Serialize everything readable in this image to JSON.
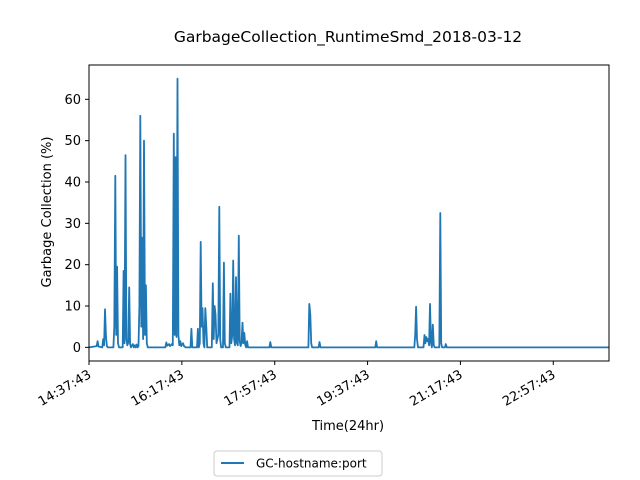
{
  "chart_data": {
    "type": "line",
    "title": "GarbageCollection_RuntimeSmd_2018-03-12",
    "xlabel": "Time(24hr)",
    "ylabel": "Garbage Collection (%)",
    "xlim": [
      "14:37:43",
      "23:57:43"
    ],
    "ylim": [
      -3.3,
      68.3
    ],
    "x_ticks": [
      "14:37:43",
      "16:17:43",
      "17:57:43",
      "19:37:43",
      "21:17:43",
      "22:57:43"
    ],
    "y_ticks": [
      0,
      10,
      20,
      30,
      40,
      50,
      60
    ],
    "grid": false,
    "legend_position": "bottom-center",
    "series": [
      {
        "name": "GC-hostname:port",
        "color": "#1f77b4",
        "points": [
          [
            "14:37:43",
            0
          ],
          [
            "14:46:00",
            0.3
          ],
          [
            "14:47:00",
            1.5
          ],
          [
            "14:48:00",
            0.2
          ],
          [
            "14:52:00",
            0
          ],
          [
            "14:53:00",
            2.0
          ],
          [
            "14:54:00",
            0.5
          ],
          [
            "14:55:00",
            9.2
          ],
          [
            "14:56:00",
            2.5
          ],
          [
            "14:57:00",
            0.3
          ],
          [
            "14:58:00",
            0
          ],
          [
            "15:04:00",
            0
          ],
          [
            "15:05:00",
            5.0
          ],
          [
            "15:06:00",
            41.5
          ],
          [
            "15:07:00",
            3.0
          ],
          [
            "15:08:00",
            19.5
          ],
          [
            "15:09:00",
            1.0
          ],
          [
            "15:10:00",
            0
          ],
          [
            "15:14:00",
            0
          ],
          [
            "15:15:00",
            18.5
          ],
          [
            "15:16:00",
            1.0
          ],
          [
            "15:17:00",
            46.5
          ],
          [
            "15:18:00",
            2.0
          ],
          [
            "15:19:00",
            0.5
          ],
          [
            "15:20:00",
            1.2
          ],
          [
            "15:21:00",
            14.5
          ],
          [
            "15:22:00",
            0.8
          ],
          [
            "15:23:00",
            0
          ],
          [
            "15:24:00",
            0.5
          ],
          [
            "15:25:00",
            0.8
          ],
          [
            "15:26:00",
            0
          ],
          [
            "15:27:00",
            0.5
          ],
          [
            "15:28:00",
            0
          ],
          [
            "15:29:00",
            0.7
          ],
          [
            "15:30:00",
            0
          ],
          [
            "15:31:00",
            0.3
          ],
          [
            "15:32:00",
            10.0
          ],
          [
            "15:33:00",
            56.0
          ],
          [
            "15:34:00",
            5.0
          ],
          [
            "15:35:00",
            26.5
          ],
          [
            "15:36:00",
            2.0
          ],
          [
            "15:37:00",
            50.0
          ],
          [
            "15:38:00",
            3.0
          ],
          [
            "15:39:00",
            15.0
          ],
          [
            "15:40:00",
            1.0
          ],
          [
            "15:41:00",
            0
          ],
          [
            "16:00:00",
            0
          ],
          [
            "16:01:00",
            1.2
          ],
          [
            "16:02:00",
            0.4
          ],
          [
            "16:04:00",
            0.8
          ],
          [
            "16:05:00",
            0.3
          ],
          [
            "16:07:00",
            0.8
          ],
          [
            "16:08:00",
            0.5
          ],
          [
            "16:09:00",
            51.7
          ],
          [
            "16:10:00",
            3.0
          ],
          [
            "16:11:00",
            46.0
          ],
          [
            "16:12:00",
            2.5
          ],
          [
            "16:13:00",
            65.0
          ],
          [
            "16:14:00",
            3.0
          ],
          [
            "16:15:00",
            0.5
          ],
          [
            "16:16:00",
            1.5
          ],
          [
            "16:17:00",
            0.3
          ],
          [
            "16:19:00",
            1.0
          ],
          [
            "16:20:00",
            0.3
          ],
          [
            "16:22:00",
            0
          ],
          [
            "16:27:00",
            0
          ],
          [
            "16:28:00",
            4.5
          ],
          [
            "16:29:00",
            0
          ],
          [
            "16:34:00",
            0
          ],
          [
            "16:35:00",
            4.5
          ],
          [
            "16:36:00",
            0
          ],
          [
            "16:37:00",
            1.0
          ],
          [
            "16:38:00",
            25.5
          ],
          [
            "16:39:00",
            5.0
          ],
          [
            "16:40:00",
            9.5
          ],
          [
            "16:41:00",
            1.0
          ],
          [
            "16:42:00",
            0
          ],
          [
            "16:43:00",
            9.5
          ],
          [
            "16:44:00",
            5.0
          ],
          [
            "16:45:00",
            0
          ],
          [
            "16:50:00",
            0
          ],
          [
            "16:51:00",
            15.5
          ],
          [
            "16:52:00",
            2.0
          ],
          [
            "16:53:00",
            10.0
          ],
          [
            "16:54:00",
            8.0
          ],
          [
            "16:55:00",
            1.0
          ],
          [
            "16:57:00",
            3.0
          ],
          [
            "16:58:00",
            34.0
          ],
          [
            "16:59:00",
            2.0
          ],
          [
            "17:00:00",
            0
          ],
          [
            "17:02:00",
            0
          ],
          [
            "17:03:00",
            20.5
          ],
          [
            "17:04:00",
            1.0
          ],
          [
            "17:05:00",
            0
          ],
          [
            "17:09:00",
            0
          ],
          [
            "17:10:00",
            13.0
          ],
          [
            "17:11:00",
            1.0
          ],
          [
            "17:12:00",
            3.0
          ],
          [
            "17:13:00",
            21.0
          ],
          [
            "17:14:00",
            2.0
          ],
          [
            "17:15:00",
            0.5
          ],
          [
            "17:16:00",
            17.0
          ],
          [
            "17:17:00",
            1.0
          ],
          [
            "17:18:00",
            0.5
          ],
          [
            "17:19:00",
            27.0
          ],
          [
            "17:20:00",
            1.5
          ],
          [
            "17:21:00",
            0.3
          ],
          [
            "17:22:00",
            1.0
          ],
          [
            "17:23:00",
            6.0
          ],
          [
            "17:24:00",
            1.0
          ],
          [
            "17:25:00",
            3.5
          ],
          [
            "17:26:00",
            0.5
          ],
          [
            "17:27:00",
            0
          ],
          [
            "17:28:00",
            1.5
          ],
          [
            "17:29:00",
            0
          ],
          [
            "17:52:00",
            0
          ],
          [
            "17:53:00",
            1.3
          ],
          [
            "17:54:00",
            0
          ],
          [
            "18:34:00",
            0
          ],
          [
            "18:35:00",
            10.5
          ],
          [
            "18:36:00",
            8.0
          ],
          [
            "18:37:00",
            1.0
          ],
          [
            "18:38:00",
            0
          ],
          [
            "18:45:00",
            0
          ],
          [
            "18:46:00",
            1.3
          ],
          [
            "18:47:00",
            0
          ],
          [
            "19:46:00",
            0
          ],
          [
            "19:47:00",
            1.5
          ],
          [
            "19:48:00",
            0
          ],
          [
            "20:28:00",
            0
          ],
          [
            "20:29:00",
            3.0
          ],
          [
            "20:30:00",
            9.8
          ],
          [
            "20:31:00",
            2.0
          ],
          [
            "20:32:00",
            0
          ],
          [
            "20:38:00",
            0
          ],
          [
            "20:39:00",
            3.0
          ],
          [
            "20:40:00",
            1.0
          ],
          [
            "20:41:00",
            2.5
          ],
          [
            "20:42:00",
            1.5
          ],
          [
            "20:43:00",
            2.0
          ],
          [
            "20:44:00",
            0.5
          ],
          [
            "20:45:00",
            10.5
          ],
          [
            "20:46:00",
            1.0
          ],
          [
            "20:47:00",
            0
          ],
          [
            "20:48:00",
            5.5
          ],
          [
            "20:49:00",
            0.5
          ],
          [
            "20:50:00",
            0
          ],
          [
            "20:55:00",
            0
          ],
          [
            "20:56:00",
            32.5
          ],
          [
            "20:57:00",
            1.0
          ],
          [
            "20:58:00",
            0
          ],
          [
            "21:01:00",
            0
          ],
          [
            "21:02:00",
            0.8
          ],
          [
            "21:03:00",
            0
          ],
          [
            "23:57:43",
            0
          ]
        ]
      }
    ]
  }
}
